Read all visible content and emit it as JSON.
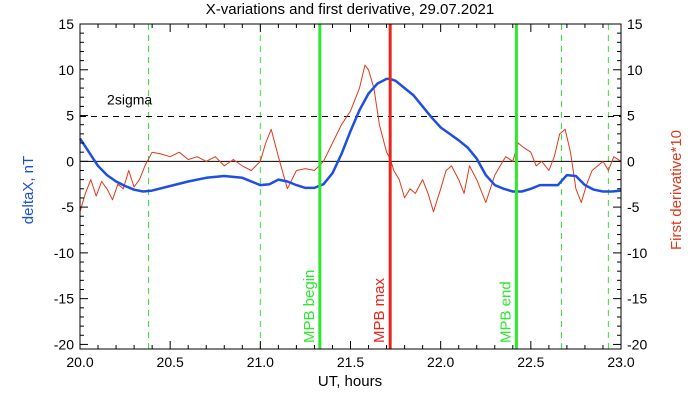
{
  "chart_data": {
    "type": "line",
    "title": "X-variations and first derivative, 29.07.2021",
    "xlabel": "UT, hours",
    "ylabel_left": "deltaX, nT",
    "ylabel_right": "First derivative*10",
    "xlim": [
      20.0,
      23.0
    ],
    "ylim": [
      -20.5,
      15
    ],
    "x_ticks": [
      "20.0",
      "20.5",
      "21.0",
      "21.5",
      "22.0",
      "22.5",
      "23.0"
    ],
    "x_tick_values": [
      20.0,
      20.5,
      21.0,
      21.5,
      22.0,
      22.5,
      23.0
    ],
    "y_ticks": [
      "15",
      "10",
      "5",
      "0",
      "-5",
      "-10",
      "-15",
      "-20"
    ],
    "y_tick_values": [
      15,
      10,
      5,
      0,
      -5,
      -10,
      -15,
      -20
    ],
    "grid": false,
    "colors": {
      "deltaX": "#1f4fe0",
      "derivative": "#e0381c",
      "event_lines": "#2ee82e",
      "max_line": "#e8261a",
      "ylabel_left": "#1a4fd8",
      "ylabel_right": "#e0381c"
    },
    "sigma": {
      "label": "2sigma",
      "value": 4.9
    },
    "zero_line": 0,
    "dashed_verticals": [
      20.38,
      21.0,
      22.67,
      22.93
    ],
    "markers": [
      {
        "label": "MPB begin",
        "x": 21.33,
        "color": "#2ee82e"
      },
      {
        "label": "MPB max",
        "x": 21.72,
        "color": "#e8261a"
      },
      {
        "label": "MPB end",
        "x": 22.42,
        "color": "#2ee82e"
      }
    ],
    "series": [
      {
        "key": "deltaX",
        "x": [
          20.0,
          20.05,
          20.1,
          20.15,
          20.2,
          20.25,
          20.3,
          20.35,
          20.4,
          20.5,
          20.6,
          20.7,
          20.8,
          20.9,
          21.0,
          21.05,
          21.1,
          21.15,
          21.2,
          21.25,
          21.3,
          21.35,
          21.4,
          21.45,
          21.5,
          21.55,
          21.6,
          21.65,
          21.7,
          21.72,
          21.75,
          21.8,
          21.85,
          21.9,
          21.95,
          22.0,
          22.05,
          22.1,
          22.15,
          22.2,
          22.25,
          22.3,
          22.35,
          22.4,
          22.45,
          22.5,
          22.55,
          22.6,
          22.65,
          22.7,
          22.75,
          22.8,
          22.85,
          22.9,
          22.95,
          23.0
        ],
        "values": [
          2.5,
          1.0,
          -0.5,
          -1.5,
          -2.2,
          -2.7,
          -3.1,
          -3.3,
          -3.2,
          -2.7,
          -2.2,
          -1.8,
          -1.6,
          -1.8,
          -2.6,
          -2.5,
          -2.0,
          -2.2,
          -2.6,
          -2.9,
          -2.9,
          -2.5,
          -1.3,
          0.8,
          3.3,
          5.6,
          7.4,
          8.5,
          9.0,
          9.0,
          8.8,
          8.0,
          7.2,
          6.0,
          4.8,
          3.7,
          3.0,
          2.3,
          1.5,
          0.3,
          -1.5,
          -2.6,
          -3.0,
          -3.3,
          -3.3,
          -3.0,
          -2.6,
          -2.6,
          -2.6,
          -1.5,
          -1.6,
          -2.6,
          -3.1,
          -3.3,
          -3.3,
          -3.2
        ]
      },
      {
        "key": "derivative",
        "x": [
          20.0,
          20.03,
          20.06,
          20.09,
          20.12,
          20.15,
          20.18,
          20.21,
          20.24,
          20.27,
          20.3,
          20.33,
          20.36,
          20.4,
          20.45,
          20.5,
          20.55,
          20.6,
          20.65,
          20.7,
          20.75,
          20.8,
          20.85,
          20.9,
          20.95,
          21.0,
          21.03,
          21.06,
          21.1,
          21.15,
          21.2,
          21.25,
          21.3,
          21.35,
          21.4,
          21.45,
          21.5,
          21.52,
          21.55,
          21.58,
          21.6,
          21.63,
          21.66,
          21.7,
          21.72,
          21.74,
          21.77,
          21.8,
          21.83,
          21.86,
          21.9,
          21.93,
          21.96,
          22.0,
          22.03,
          22.06,
          22.1,
          22.13,
          22.16,
          22.2,
          22.25,
          22.3,
          22.33,
          22.36,
          22.4,
          22.43,
          22.46,
          22.5,
          22.53,
          22.56,
          22.6,
          22.63,
          22.66,
          22.69,
          22.72,
          22.75,
          22.78,
          22.81,
          22.84,
          22.87,
          22.9,
          22.93,
          22.96,
          23.0
        ],
        "values": [
          -5.5,
          -3.5,
          -2.0,
          -3.8,
          -2.2,
          -3.0,
          -4.2,
          -2.5,
          -3.0,
          -1.0,
          -2.8,
          -2.0,
          -0.5,
          1.0,
          0.8,
          0.5,
          1.0,
          0.2,
          0.5,
          0.0,
          0.5,
          -0.5,
          0.2,
          -0.5,
          -1.0,
          0.0,
          2.0,
          3.5,
          0.5,
          -3.0,
          -1.0,
          -0.8,
          -1.0,
          0.0,
          2.0,
          4.0,
          5.5,
          6.5,
          8.0,
          10.5,
          10.0,
          8.0,
          4.0,
          1.0,
          0.3,
          -1.0,
          -2.0,
          -4.0,
          -3.0,
          -3.5,
          -2.0,
          -3.5,
          -5.5,
          -3.0,
          -1.0,
          -0.5,
          -2.0,
          -3.5,
          -0.5,
          -2.0,
          -4.5,
          -1.5,
          -0.5,
          0.5,
          0.0,
          2.0,
          1.5,
          1.0,
          -0.5,
          0.0,
          -1.0,
          0.5,
          3.0,
          3.5,
          1.0,
          -3.0,
          -4.5,
          -2.5,
          -1.0,
          -0.5,
          0.0,
          -1.0,
          0.5,
          0.0
        ]
      }
    ]
  }
}
